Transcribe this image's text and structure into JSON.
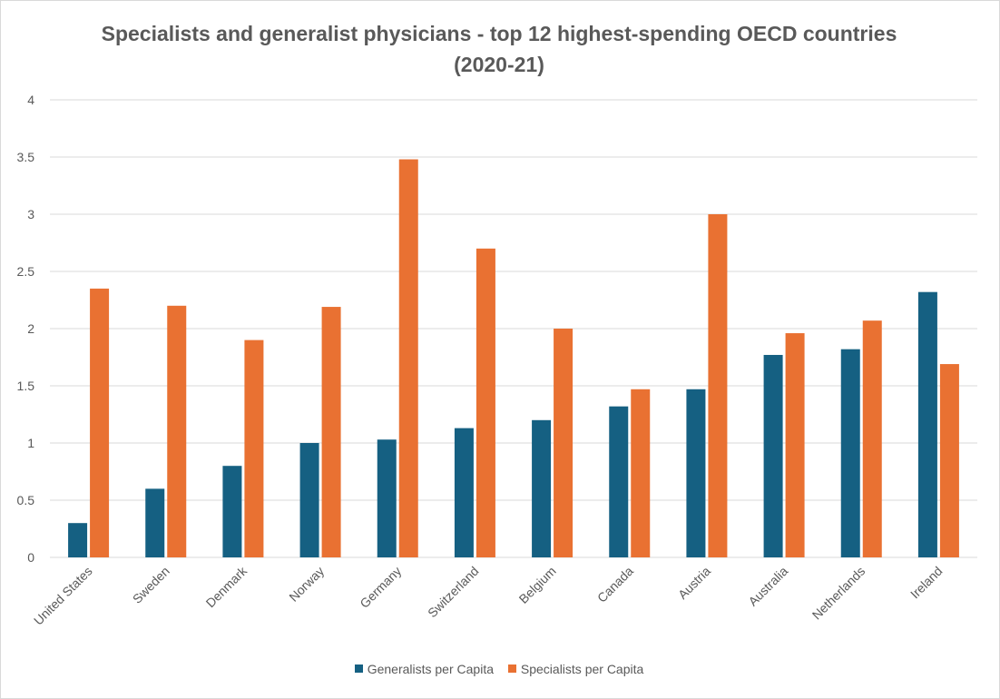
{
  "chart_data": {
    "type": "bar",
    "title": "Specialists and generalist physicians - top 12 highest-spending OECD countries (2020-21)",
    "categories": [
      "United States",
      "Sweden",
      "Denmark",
      "Norway",
      "Germany",
      "Switzerland",
      "Belgium",
      "Canada",
      "Austria",
      "Australia",
      "Netherlands",
      "Ireland"
    ],
    "series": [
      {
        "name": "Generalists per Capita",
        "color": "#156082",
        "values": [
          0.3,
          0.6,
          0.8,
          1.0,
          1.03,
          1.13,
          1.2,
          1.32,
          1.47,
          1.77,
          1.82,
          2.32
        ]
      },
      {
        "name": "Specialists per Capita",
        "color": "#E97132",
        "values": [
          2.35,
          2.2,
          1.9,
          2.19,
          3.48,
          2.7,
          2.0,
          1.47,
          3.0,
          1.96,
          2.07,
          1.69
        ]
      }
    ],
    "yticks": [
      "0",
      "0.5",
      "1",
      "1.5",
      "2",
      "2.5",
      "3",
      "3.5",
      "4"
    ],
    "ylim": [
      0,
      4
    ],
    "xlabel": "",
    "ylabel": "",
    "grid": true,
    "legend": "bottom"
  }
}
